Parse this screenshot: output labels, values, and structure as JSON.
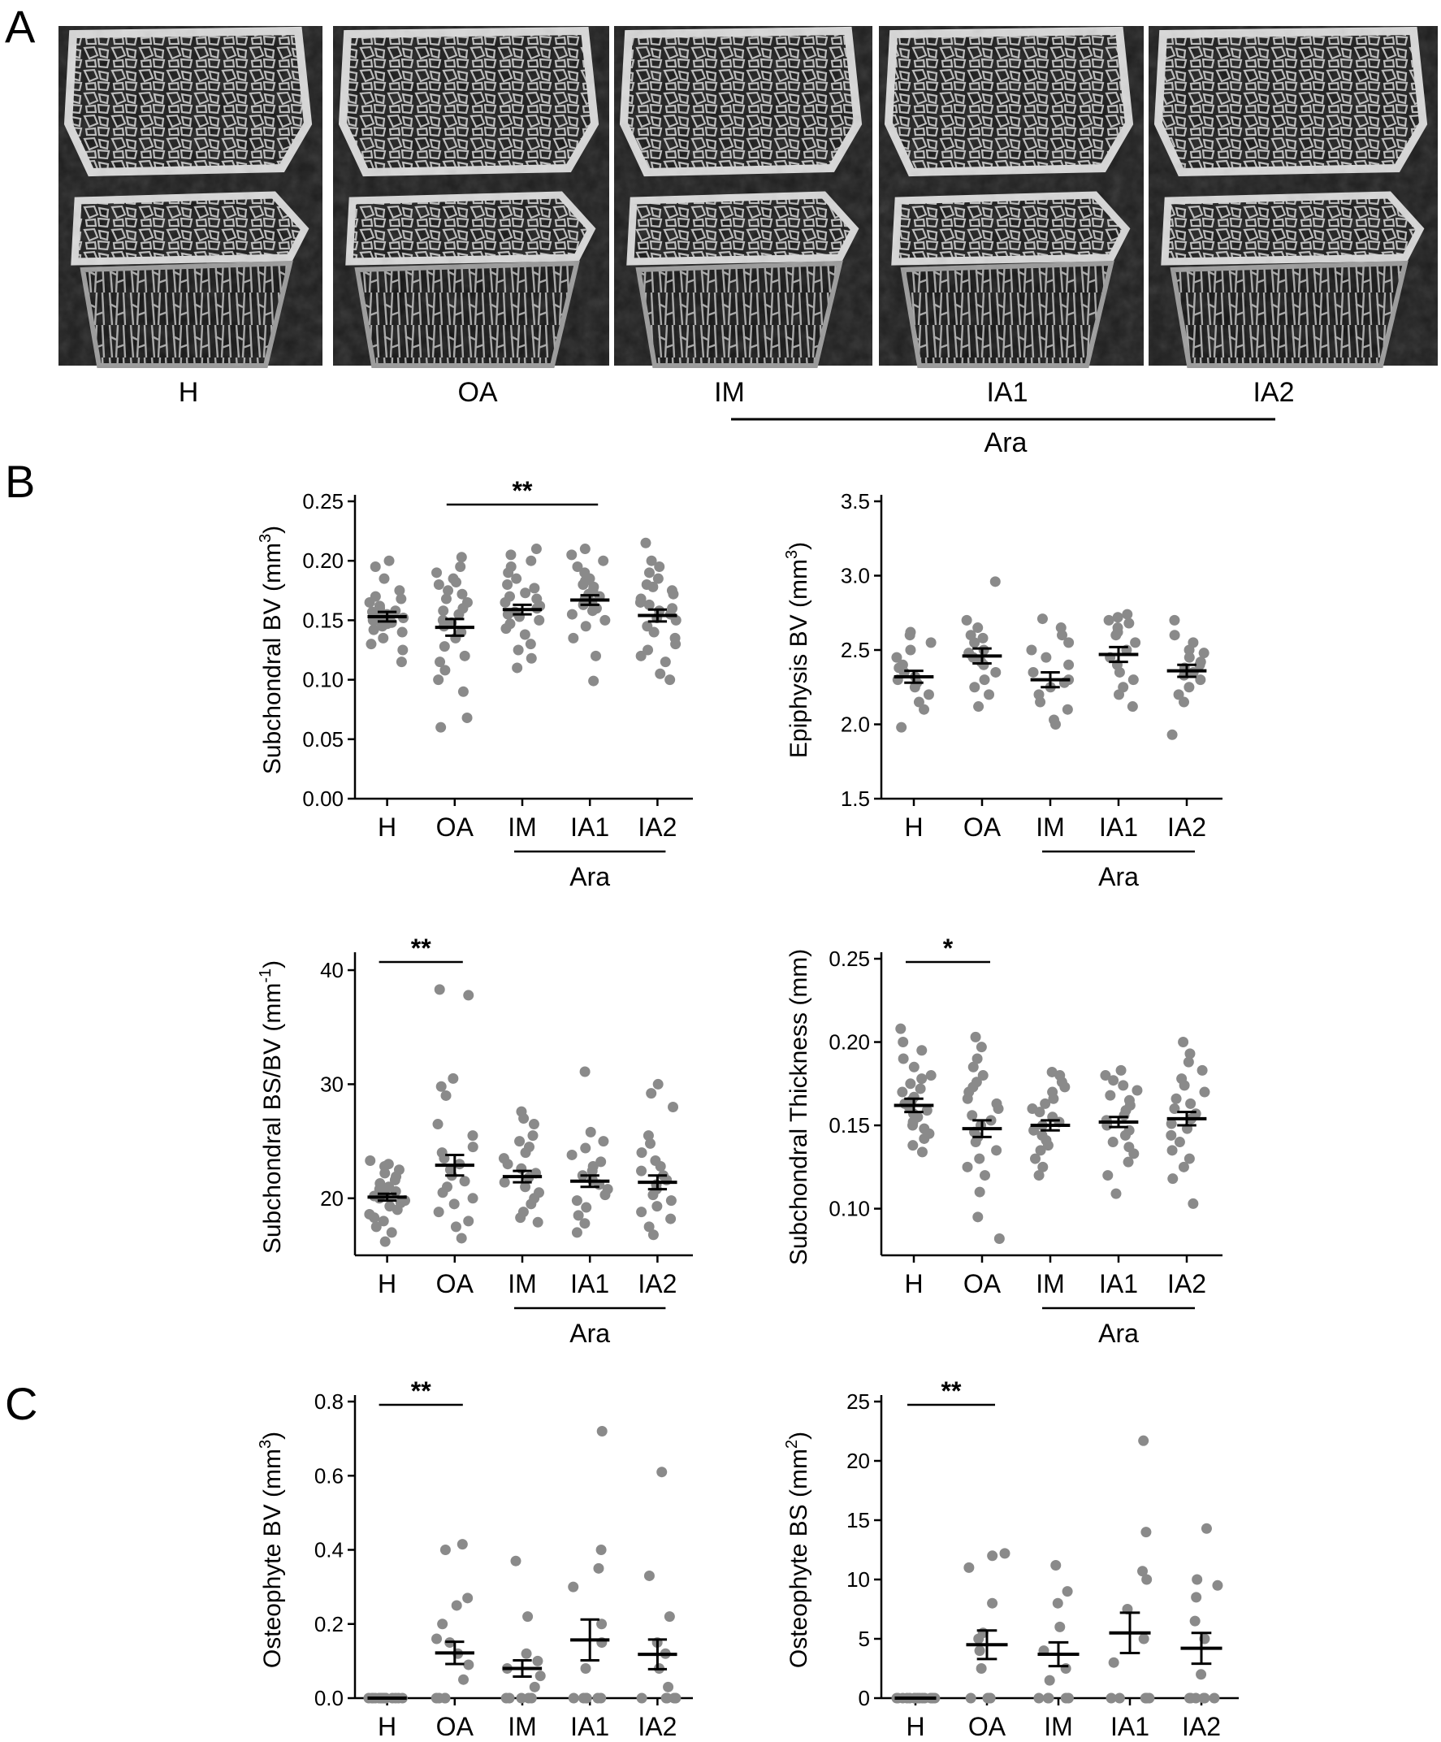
{
  "panels": {
    "a_label": "A",
    "b_label": "B",
    "c_label": "C"
  },
  "images": [
    {
      "label": "H"
    },
    {
      "label": "OA"
    },
    {
      "label": "IM"
    },
    {
      "label": "IA1"
    },
    {
      "label": "IA2"
    }
  ],
  "ara_label": "Ara",
  "colors": {
    "points": "#8a8a8a",
    "mean_bar": "#000000",
    "axis": "#000000",
    "image_bg": "#1e1e1e",
    "bone": "#d8d8d8"
  },
  "chart_data": [
    {
      "id": "subchondral-bv",
      "type": "scatter",
      "ylabel": "Subchondral BV (mm",
      "ylabel_sup": "3",
      "ylabel_tail": ")",
      "categories": [
        "H",
        "OA",
        "IM",
        "IA1",
        "IA2"
      ],
      "ylim": [
        0,
        0.25
      ],
      "yticks": [
        "0.00",
        "0.05",
        "0.10",
        "0.15",
        "0.20",
        "0.25"
      ],
      "mean": [
        0.153,
        0.144,
        0.159,
        0.167,
        0.154
      ],
      "sem": [
        0.004,
        0.007,
        0.004,
        0.004,
        0.005
      ],
      "points": [
        [
          0.115,
          0.125,
          0.13,
          0.135,
          0.14,
          0.142,
          0.145,
          0.147,
          0.148,
          0.15,
          0.15,
          0.152,
          0.153,
          0.154,
          0.155,
          0.156,
          0.157,
          0.158,
          0.16,
          0.162,
          0.165,
          0.168,
          0.17,
          0.175,
          0.185,
          0.195,
          0.2
        ],
        [
          0.06,
          0.068,
          0.09,
          0.1,
          0.108,
          0.115,
          0.12,
          0.128,
          0.135,
          0.14,
          0.145,
          0.148,
          0.15,
          0.155,
          0.158,
          0.16,
          0.165,
          0.168,
          0.172,
          0.175,
          0.18,
          0.182,
          0.185,
          0.19,
          0.195,
          0.203
        ],
        [
          0.11,
          0.118,
          0.125,
          0.13,
          0.138,
          0.143,
          0.147,
          0.15,
          0.153,
          0.155,
          0.157,
          0.16,
          0.162,
          0.165,
          0.168,
          0.17,
          0.173,
          0.177,
          0.18,
          0.185,
          0.19,
          0.195,
          0.2,
          0.205,
          0.21
        ],
        [
          0.099,
          0.12,
          0.135,
          0.145,
          0.15,
          0.155,
          0.158,
          0.16,
          0.163,
          0.165,
          0.167,
          0.168,
          0.17,
          0.172,
          0.175,
          0.178,
          0.18,
          0.183,
          0.185,
          0.19,
          0.195,
          0.2,
          0.205,
          0.21
        ],
        [
          0.1,
          0.105,
          0.115,
          0.12,
          0.125,
          0.13,
          0.135,
          0.14,
          0.145,
          0.15,
          0.152,
          0.155,
          0.158,
          0.16,
          0.163,
          0.165,
          0.168,
          0.172,
          0.175,
          0.178,
          0.18,
          0.185,
          0.19,
          0.195,
          0.2,
          0.215
        ]
      ],
      "significance": [
        {
          "from": 1,
          "to": 3,
          "label": "**"
        }
      ],
      "group_bracket": {
        "from": 2,
        "to": 4,
        "label": "Ara"
      }
    },
    {
      "id": "epiphysis-bv",
      "type": "scatter",
      "ylabel": "Epiphysis BV (mm",
      "ylabel_sup": "3",
      "ylabel_tail": ")",
      "categories": [
        "H",
        "OA",
        "IM",
        "IA1",
        "IA2"
      ],
      "ylim": [
        1.5,
        3.5
      ],
      "yticks": [
        "1.5",
        "2.0",
        "2.5",
        "3.0",
        "3.5"
      ],
      "mean": [
        2.32,
        2.46,
        2.3,
        2.47,
        2.36
      ],
      "sem": [
        0.04,
        0.05,
        0.05,
        0.05,
        0.04
      ],
      "points": [
        [
          1.98,
          2.1,
          2.15,
          2.2,
          2.25,
          2.28,
          2.3,
          2.32,
          2.35,
          2.38,
          2.4,
          2.45,
          2.5,
          2.55,
          2.6,
          2.62
        ],
        [
          2.12,
          2.2,
          2.25,
          2.3,
          2.35,
          2.4,
          2.42,
          2.45,
          2.48,
          2.5,
          2.55,
          2.58,
          2.6,
          2.65,
          2.7,
          2.96
        ],
        [
          2.0,
          2.03,
          2.1,
          2.15,
          2.2,
          2.25,
          2.28,
          2.3,
          2.35,
          2.4,
          2.45,
          2.5,
          2.55,
          2.6,
          2.65,
          2.71
        ],
        [
          2.12,
          2.2,
          2.25,
          2.3,
          2.35,
          2.4,
          2.45,
          2.5,
          2.55,
          2.6,
          2.62,
          2.65,
          2.68,
          2.7,
          2.72,
          2.74
        ],
        [
          1.93,
          2.15,
          2.2,
          2.25,
          2.3,
          2.33,
          2.35,
          2.38,
          2.4,
          2.42,
          2.45,
          2.48,
          2.5,
          2.55,
          2.6,
          2.7
        ]
      ],
      "significance": [],
      "group_bracket": {
        "from": 2,
        "to": 4,
        "label": "Ara"
      }
    },
    {
      "id": "subchondral-bsbv",
      "type": "scatter",
      "ylabel": "Subchondral BS/BV (mm",
      "ylabel_sup": "-1",
      "ylabel_tail": ")",
      "categories": [
        "H",
        "OA",
        "IM",
        "IA1",
        "IA2"
      ],
      "ylim": [
        15,
        41
      ],
      "yticks": [
        "20",
        "30",
        "40"
      ],
      "tickvals": [
        20,
        30,
        40
      ],
      "mean": [
        20.1,
        22.9,
        21.9,
        21.5,
        21.4
      ],
      "sem": [
        0.3,
        0.9,
        0.5,
        0.5,
        0.6
      ],
      "points": [
        [
          16.2,
          17.0,
          17.5,
          18.0,
          18.3,
          18.6,
          19.0,
          19.3,
          19.6,
          19.8,
          20.0,
          20.2,
          20.4,
          20.6,
          20.8,
          21.0,
          21.3,
          21.6,
          21.9,
          22.2,
          22.5,
          22.8,
          23.0,
          23.3
        ],
        [
          16.5,
          17.5,
          18.0,
          18.8,
          19.5,
          20.0,
          20.5,
          21.0,
          21.5,
          22.0,
          22.5,
          23.0,
          23.5,
          24.0,
          24.5,
          25.5,
          26.5,
          29.0,
          29.8,
          30.5,
          37.8,
          38.3
        ],
        [
          17.9,
          18.3,
          18.8,
          19.5,
          20.0,
          20.5,
          21.0,
          21.4,
          21.8,
          22.2,
          22.6,
          23.0,
          23.5,
          24.0,
          24.5,
          25.0,
          25.5,
          26.5,
          27.0,
          27.6
        ],
        [
          17.0,
          17.8,
          18.5,
          19.2,
          19.8,
          20.3,
          20.8,
          21.2,
          21.6,
          22.0,
          22.4,
          22.8,
          23.2,
          23.8,
          24.4,
          25.0,
          25.8,
          31.1
        ],
        [
          16.8,
          17.5,
          18.2,
          18.8,
          19.3,
          19.8,
          20.3,
          20.8,
          21.2,
          21.6,
          22.0,
          22.4,
          22.8,
          23.3,
          24.0,
          24.8,
          25.5,
          28.0,
          29.2,
          30.0
        ]
      ],
      "significance": [
        {
          "from": 0,
          "to": 1,
          "label": "**"
        }
      ],
      "group_bracket": {
        "from": 2,
        "to": 4,
        "label": "Ara"
      }
    },
    {
      "id": "subchondral-thickness",
      "type": "scatter",
      "ylabel": "Subchondral Thickness (mm)",
      "ylabel_sup": "",
      "ylabel_tail": "",
      "categories": [
        "H",
        "OA",
        "IM",
        "IA1",
        "IA2"
      ],
      "ylim": [
        0.072,
        0.25
      ],
      "yticks": [
        "0.10",
        "0.15",
        "0.20",
        "0.25"
      ],
      "tickvals": [
        0.1,
        0.15,
        0.2,
        0.25
      ],
      "mean": [
        0.162,
        0.148,
        0.15,
        0.152,
        0.154
      ],
      "sem": [
        0.004,
        0.005,
        0.003,
        0.003,
        0.004
      ],
      "points": [
        [
          0.134,
          0.138,
          0.142,
          0.145,
          0.148,
          0.15,
          0.152,
          0.155,
          0.157,
          0.159,
          0.161,
          0.163,
          0.165,
          0.167,
          0.17,
          0.172,
          0.175,
          0.178,
          0.18,
          0.185,
          0.19,
          0.195,
          0.2,
          0.208
        ],
        [
          0.082,
          0.095,
          0.11,
          0.12,
          0.125,
          0.13,
          0.135,
          0.14,
          0.143,
          0.146,
          0.15,
          0.153,
          0.156,
          0.16,
          0.163,
          0.166,
          0.17,
          0.173,
          0.176,
          0.18,
          0.185,
          0.19,
          0.197,
          0.203
        ],
        [
          0.12,
          0.125,
          0.13,
          0.135,
          0.138,
          0.141,
          0.144,
          0.147,
          0.15,
          0.152,
          0.155,
          0.158,
          0.16,
          0.163,
          0.166,
          0.17,
          0.173,
          0.176,
          0.18,
          0.182
        ],
        [
          0.109,
          0.12,
          0.128,
          0.133,
          0.137,
          0.14,
          0.144,
          0.147,
          0.15,
          0.153,
          0.156,
          0.159,
          0.162,
          0.165,
          0.168,
          0.171,
          0.174,
          0.177,
          0.18,
          0.183
        ],
        [
          0.103,
          0.118,
          0.125,
          0.13,
          0.135,
          0.14,
          0.144,
          0.148,
          0.151,
          0.154,
          0.157,
          0.16,
          0.163,
          0.166,
          0.17,
          0.174,
          0.178,
          0.183,
          0.188,
          0.193,
          0.2
        ]
      ],
      "significance": [
        {
          "from": 0,
          "to": 1,
          "label": "*"
        }
      ],
      "group_bracket": {
        "from": 2,
        "to": 4,
        "label": "Ara"
      }
    },
    {
      "id": "osteophyte-bv",
      "type": "scatter",
      "ylabel": "Osteophyte BV (mm",
      "ylabel_sup": "3",
      "ylabel_tail": ")",
      "categories": [
        "H",
        "OA",
        "IM",
        "IA1",
        "IA2"
      ],
      "ylim": [
        0,
        0.8
      ],
      "yticks": [
        "0.0",
        "0.2",
        "0.4",
        "0.6",
        "0.8"
      ],
      "mean": [
        0.0,
        0.122,
        0.08,
        0.157,
        0.118
      ],
      "sem": [
        0.0,
        0.03,
        0.022,
        0.055,
        0.04
      ],
      "points": [
        [
          0,
          0,
          0,
          0,
          0,
          0,
          0,
          0,
          0,
          0,
          0,
          0,
          0,
          0,
          0,
          0
        ],
        [
          0,
          0,
          0,
          0,
          0.05,
          0.09,
          0.12,
          0.15,
          0.16,
          0.2,
          0.25,
          0.27,
          0.4,
          0.415
        ],
        [
          0,
          0,
          0,
          0,
          0,
          0.03,
          0.06,
          0.08,
          0.1,
          0.12,
          0.22,
          0.37
        ],
        [
          0,
          0,
          0,
          0,
          0,
          0,
          0.08,
          0.15,
          0.2,
          0.3,
          0.35,
          0.4,
          0.72
        ],
        [
          0,
          0,
          0,
          0,
          0,
          0,
          0.03,
          0.08,
          0.12,
          0.15,
          0.22,
          0.33,
          0.61
        ]
      ],
      "significance": [
        {
          "from": 0,
          "to": 1,
          "label": "**"
        }
      ],
      "group_bracket": null
    },
    {
      "id": "osteophyte-bs",
      "type": "scatter",
      "ylabel": "Osteophyte BS (mm",
      "ylabel_sup": "2",
      "ylabel_tail": ")",
      "categories": [
        "H",
        "OA",
        "IM",
        "IA1",
        "IA2"
      ],
      "ylim": [
        0,
        25
      ],
      "yticks": [
        "0",
        "5",
        "10",
        "15",
        "20",
        "25"
      ],
      "mean": [
        0.0,
        4.5,
        3.7,
        5.5,
        4.2
      ],
      "sem": [
        0.0,
        1.2,
        1.0,
        1.7,
        1.3
      ],
      "points": [
        [
          0,
          0,
          0,
          0,
          0,
          0,
          0,
          0,
          0,
          0,
          0,
          0,
          0,
          0,
          0,
          0
        ],
        [
          0,
          0,
          0,
          0,
          2.5,
          4.0,
          5.0,
          5.5,
          8.0,
          11.0,
          12.0,
          12.2
        ],
        [
          0,
          0,
          0,
          0,
          0,
          1.5,
          2.5,
          4.0,
          6.0,
          8.0,
          9.0,
          11.2
        ],
        [
          0,
          0,
          0,
          0,
          0,
          0,
          3.0,
          5.0,
          7.5,
          10.0,
          10.7,
          14.0,
          21.7
        ],
        [
          0,
          0,
          0,
          0,
          0,
          0,
          2.0,
          5.0,
          6.5,
          8.5,
          9.5,
          10.0,
          14.3
        ]
      ],
      "significance": [
        {
          "from": 0,
          "to": 1,
          "label": "**"
        }
      ],
      "group_bracket": null
    }
  ]
}
